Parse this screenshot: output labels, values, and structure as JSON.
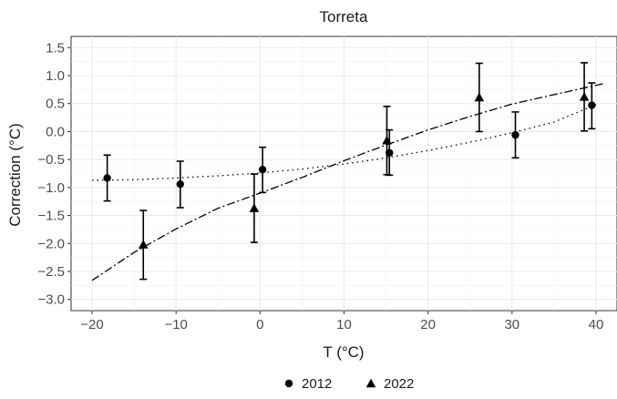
{
  "chart_data": {
    "type": "scatter",
    "title": "Torreta",
    "xlabel": "T (°C)",
    "ylabel": "Correction (°C)",
    "xlim": [
      -22.5,
      42.5
    ],
    "ylim": [
      -3.2,
      1.7
    ],
    "xticks": [
      -20,
      -10,
      0,
      10,
      20,
      30,
      40
    ],
    "xtick_labels": [
      "−20",
      "−10",
      "0",
      "10",
      "20",
      "30",
      "40"
    ],
    "yticks": [
      -3.0,
      -2.5,
      -2.0,
      -1.5,
      -1.0,
      -0.5,
      0.0,
      0.5,
      1.0,
      1.5
    ],
    "ytick_labels": [
      "−3.0",
      "−2.5",
      "−2.0",
      "−1.5",
      "−1.0",
      "−0.5",
      "0.0",
      "0.5",
      "1.0",
      "1.5"
    ],
    "grid": true,
    "legend_position": "bottom",
    "series": [
      {
        "name": "2012",
        "marker": "circle",
        "line_style": "dotted",
        "points": [
          {
            "x": -18.2,
            "y": -0.83,
            "ymin": -1.24,
            "ymax": -0.42
          },
          {
            "x": -9.5,
            "y": -0.94,
            "ymin": -1.36,
            "ymax": -0.53
          },
          {
            "x": 0.3,
            "y": -0.68,
            "ymin": -1.09,
            "ymax": -0.28
          },
          {
            "x": 15.4,
            "y": -0.38,
            "ymin": -0.78,
            "ymax": 0.03
          },
          {
            "x": 30.4,
            "y": -0.06,
            "ymin": -0.47,
            "ymax": 0.35
          },
          {
            "x": 39.5,
            "y": 0.47,
            "ymin": 0.05,
            "ymax": 0.87
          }
        ],
        "fit": [
          {
            "x": -20,
            "y": -0.87
          },
          {
            "x": -15,
            "y": -0.86
          },
          {
            "x": -10,
            "y": -0.83
          },
          {
            "x": -5,
            "y": -0.79
          },
          {
            "x": 0,
            "y": -0.74
          },
          {
            "x": 5,
            "y": -0.67
          },
          {
            "x": 10,
            "y": -0.58
          },
          {
            "x": 15,
            "y": -0.47
          },
          {
            "x": 20,
            "y": -0.34
          },
          {
            "x": 25,
            "y": -0.19
          },
          {
            "x": 30,
            "y": -0.02
          },
          {
            "x": 35,
            "y": 0.17
          },
          {
            "x": 40,
            "y": 0.48
          }
        ]
      },
      {
        "name": "2022",
        "marker": "triangle",
        "line_style": "dashdot",
        "points": [
          {
            "x": -13.9,
            "y": -2.02,
            "ymin": -2.64,
            "ymax": -1.41
          },
          {
            "x": -0.7,
            "y": -1.37,
            "ymin": -1.98,
            "ymax": -0.76
          },
          {
            "x": 15.1,
            "y": -0.16,
            "ymin": -0.77,
            "ymax": 0.45
          },
          {
            "x": 26.1,
            "y": 0.61,
            "ymin": 0.0,
            "ymax": 1.22
          },
          {
            "x": 38.6,
            "y": 0.62,
            "ymin": 0.01,
            "ymax": 1.23
          }
        ],
        "fit": [
          {
            "x": -20,
            "y": -2.66
          },
          {
            "x": -15,
            "y": -2.16
          },
          {
            "x": -10,
            "y": -1.74
          },
          {
            "x": -5,
            "y": -1.37
          },
          {
            "x": 0,
            "y": -1.1
          },
          {
            "x": 5,
            "y": -0.82
          },
          {
            "x": 10,
            "y": -0.52
          },
          {
            "x": 15,
            "y": -0.24
          },
          {
            "x": 20,
            "y": 0.03
          },
          {
            "x": 25,
            "y": 0.27
          },
          {
            "x": 30,
            "y": 0.49
          },
          {
            "x": 35,
            "y": 0.66
          },
          {
            "x": 41,
            "y": 0.86
          }
        ]
      }
    ]
  }
}
